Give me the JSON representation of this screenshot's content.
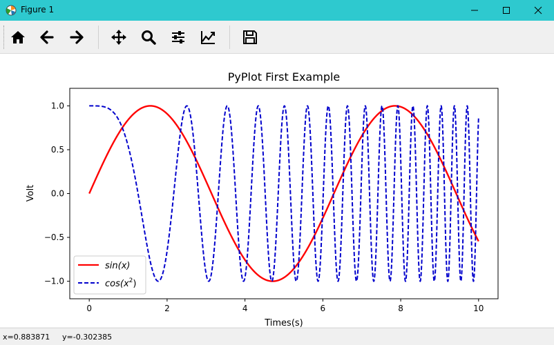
{
  "window": {
    "title": "Figure 1"
  },
  "toolbar": {
    "buttons": [
      {
        "name": "home",
        "icon": "home-icon"
      },
      {
        "name": "back",
        "icon": "arrow-left-icon"
      },
      {
        "name": "forward",
        "icon": "arrow-right-icon"
      },
      {
        "name": "pan",
        "icon": "move-icon"
      },
      {
        "name": "zoom",
        "icon": "magnifier-icon"
      },
      {
        "name": "subplots",
        "icon": "sliders-icon"
      },
      {
        "name": "edit-axes",
        "icon": "line-chart-icon"
      },
      {
        "name": "save",
        "icon": "floppy-disk-icon"
      }
    ]
  },
  "status": {
    "x_readout": "x=0.883871",
    "y_readout": "y=-0.302385"
  },
  "chart_data": {
    "type": "line",
    "title": "PyPlot First Example",
    "xlabel": "Times(s)",
    "ylabel": "Volt",
    "xlim": [
      -0.5,
      10.5
    ],
    "ylim": [
      -1.2,
      1.2
    ],
    "xticks": [
      0,
      2,
      4,
      6,
      8,
      10
    ],
    "xtick_labels": [
      "0",
      "2",
      "4",
      "6",
      "8",
      "10"
    ],
    "yticks": [
      -1.0,
      -0.5,
      0.0,
      0.5,
      1.0
    ],
    "ytick_labels": [
      "−1.0",
      "−0.5",
      "0.0",
      "0.5",
      "1.0"
    ],
    "grid": false,
    "legend_position": "lower-left",
    "x_range": [
      0,
      10
    ],
    "series": [
      {
        "name": "sin(x)",
        "label_base": "sin(x)",
        "label_sup": "",
        "function": "sin(x)",
        "color": "#ff0000",
        "style": "solid"
      },
      {
        "name": "cos(x^2)",
        "label_base": "cos(x",
        "label_sup": "2",
        "label_tail": ")",
        "function": "cos(x^2)",
        "color": "#0000cc",
        "style": "dashed"
      }
    ]
  }
}
